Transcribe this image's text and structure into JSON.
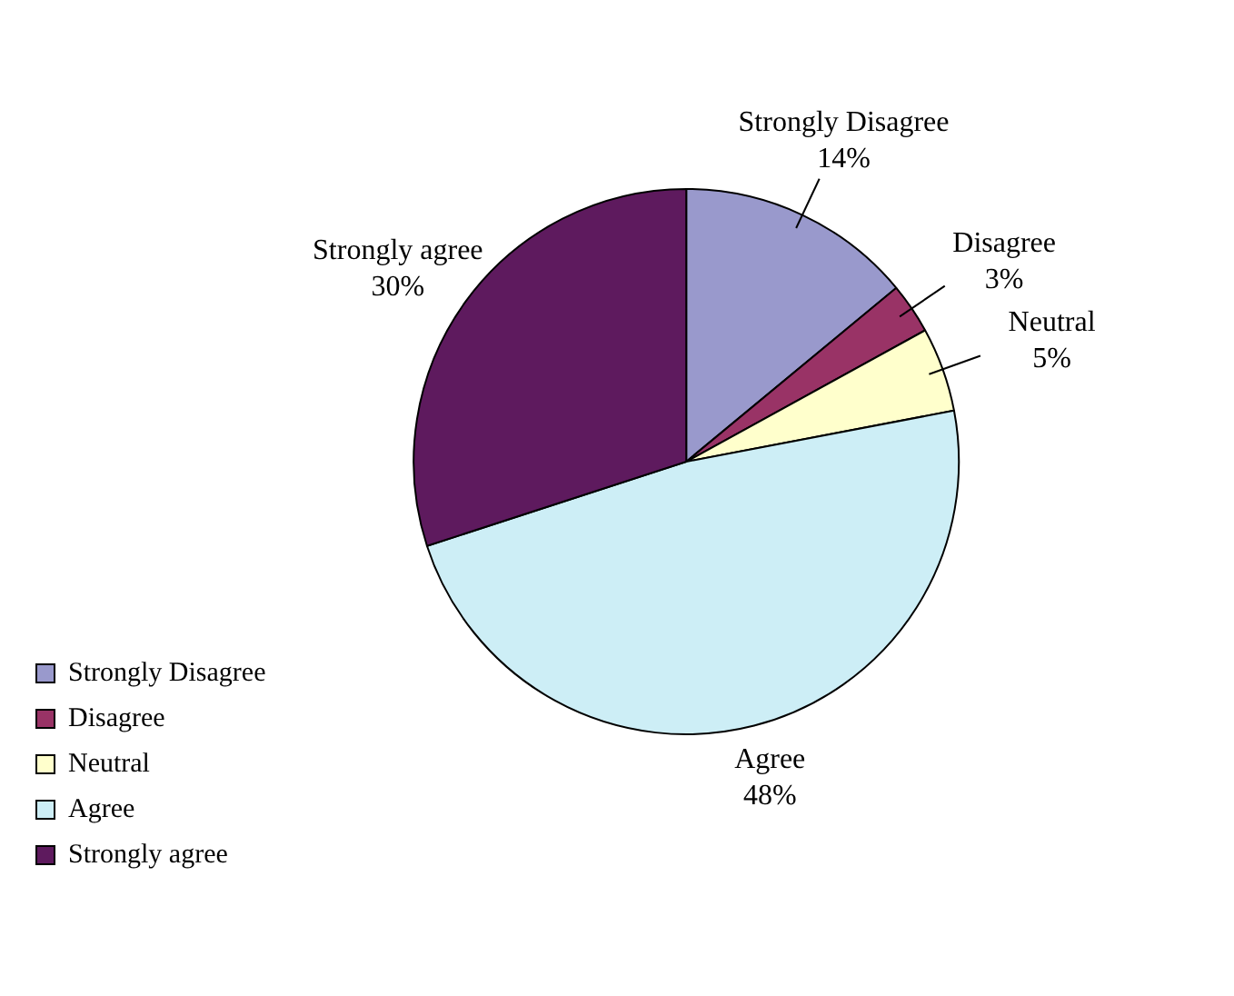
{
  "chart_data": {
    "type": "pie",
    "categories": [
      "Strongly Disagree",
      "Disagree",
      "Neutral",
      "Agree",
      "Strongly agree"
    ],
    "values": [
      14,
      3,
      5,
      48,
      30
    ],
    "colors": [
      "#9999cc",
      "#993366",
      "#ffffcc",
      "#cdeef6",
      "#5e1a5e"
    ],
    "legend": "bottom left",
    "value_labels": [
      "14%",
      "3%",
      "5%",
      "48%",
      "30%"
    ]
  }
}
